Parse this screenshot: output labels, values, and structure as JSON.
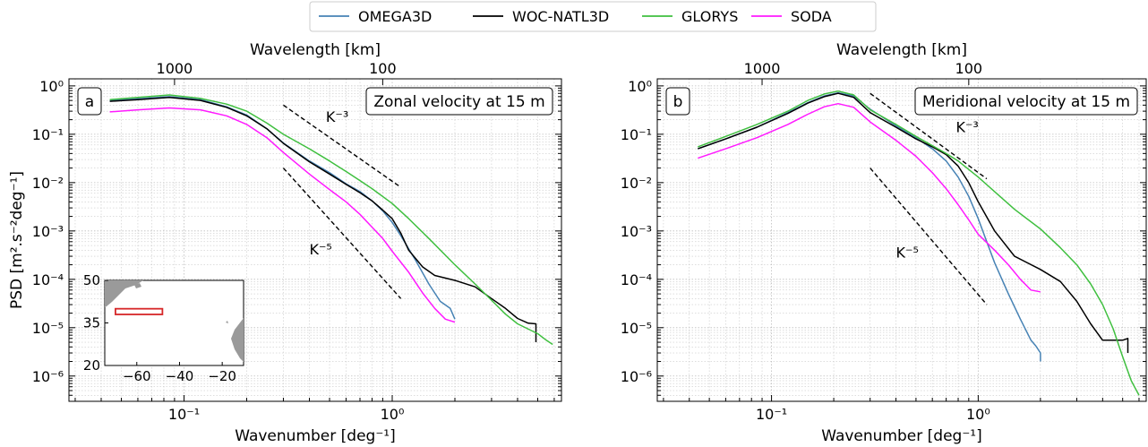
{
  "legend": {
    "items": [
      {
        "label": "OMEGA3D",
        "color": "#4682b4"
      },
      {
        "label": "WOC-NATL3D",
        "color": "#000000"
      },
      {
        "label": "GLORYS",
        "color": "#3fbf3f"
      },
      {
        "label": "SODA",
        "color": "#ff1aff"
      }
    ]
  },
  "chart_data": [
    {
      "type": "line",
      "panel_label": "a",
      "title": "Zonal velocity at 15 m",
      "xlabel": "Wavenumber [deg⁻¹]",
      "ylabel": "PSD [m².s⁻²deg⁻¹]",
      "top_axis_label": "Wavelength [km]",
      "top_ticks": [
        {
          "label": "1000",
          "wavenumber": 0.09
        },
        {
          "label": "100",
          "wavenumber": 0.9
        }
      ],
      "x_scale": "log",
      "y_scale": "log",
      "xlim": [
        0.028,
        6.5
      ],
      "ylim": [
        3e-07,
        1.4
      ],
      "x_ticks": [
        {
          "value": 0.1,
          "label": "10⁻¹"
        },
        {
          "value": 1,
          "label": "10⁰"
        }
      ],
      "y_ticks": [
        {
          "value": 1e-06,
          "label": "10⁻⁶"
        },
        {
          "value": 1e-05,
          "label": "10⁻⁵"
        },
        {
          "value": 0.0001,
          "label": "10⁻⁴"
        },
        {
          "value": 0.001,
          "label": "10⁻³"
        },
        {
          "value": 0.01,
          "label": "10⁻²"
        },
        {
          "value": 0.1,
          "label": "10⁻¹"
        },
        {
          "value": 1,
          "label": "10⁰"
        }
      ],
      "grid": true,
      "series": [
        {
          "name": "OMEGA3D",
          "color": "#4682b4",
          "points": [
            [
              0.044,
              0.5
            ],
            [
              0.06,
              0.54
            ],
            [
              0.085,
              0.6
            ],
            [
              0.12,
              0.52
            ],
            [
              0.16,
              0.37
            ],
            [
              0.2,
              0.25
            ],
            [
              0.25,
              0.13
            ],
            [
              0.3,
              0.066
            ],
            [
              0.4,
              0.028
            ],
            [
              0.5,
              0.016
            ],
            [
              0.6,
              0.0095
            ],
            [
              0.7,
              0.0065
            ],
            [
              0.8,
              0.0042
            ],
            [
              0.9,
              0.0026
            ],
            [
              1.0,
              0.0015
            ],
            [
              1.1,
              0.0008
            ],
            [
              1.3,
              0.00024
            ],
            [
              1.5,
              8e-05
            ],
            [
              1.7,
              3.5e-05
            ],
            [
              1.9,
              2.5e-05
            ],
            [
              2.0,
              1.5e-05
            ]
          ]
        },
        {
          "name": "WOC-NATL3D",
          "color": "#000000",
          "points": [
            [
              0.044,
              0.48
            ],
            [
              0.06,
              0.52
            ],
            [
              0.085,
              0.58
            ],
            [
              0.12,
              0.5
            ],
            [
              0.16,
              0.36
            ],
            [
              0.2,
              0.24
            ],
            [
              0.25,
              0.13
            ],
            [
              0.3,
              0.065
            ],
            [
              0.4,
              0.027
            ],
            [
              0.5,
              0.015
            ],
            [
              0.6,
              0.0092
            ],
            [
              0.7,
              0.0062
            ],
            [
              0.8,
              0.0042
            ],
            [
              0.9,
              0.0027
            ],
            [
              1.0,
              0.0018
            ],
            [
              1.1,
              0.0009
            ],
            [
              1.2,
              0.0004
            ],
            [
              1.4,
              0.00018
            ],
            [
              1.6,
              0.00012
            ],
            [
              2.0,
              9.5e-05
            ],
            [
              2.5,
              7e-05
            ],
            [
              3.0,
              4e-05
            ],
            [
              3.5,
              2.5e-05
            ],
            [
              4.0,
              1.55e-05
            ],
            [
              4.5,
              1.24e-05
            ],
            [
              4.9,
              1.2e-05
            ],
            [
              4.9,
              5e-06
            ]
          ]
        },
        {
          "name": "GLORYS",
          "color": "#3fbf3f",
          "points": [
            [
              0.044,
              0.52
            ],
            [
              0.06,
              0.58
            ],
            [
              0.085,
              0.65
            ],
            [
              0.12,
              0.55
            ],
            [
              0.16,
              0.42
            ],
            [
              0.2,
              0.3
            ],
            [
              0.25,
              0.17
            ],
            [
              0.3,
              0.1
            ],
            [
              0.4,
              0.05
            ],
            [
              0.5,
              0.028
            ],
            [
              0.6,
              0.017
            ],
            [
              0.7,
              0.011
            ],
            [
              0.8,
              0.0075
            ],
            [
              1.0,
              0.0037
            ],
            [
              1.2,
              0.0018
            ],
            [
              1.5,
              0.0007
            ],
            [
              2.0,
              0.0002
            ],
            [
              2.5,
              8e-05
            ],
            [
              3.0,
              3.7e-05
            ],
            [
              3.5,
              1.9e-05
            ],
            [
              4.0,
              1.2e-05
            ],
            [
              5.0,
              7.5e-06
            ],
            [
              5.5,
              5.5e-06
            ],
            [
              5.9,
              4.5e-06
            ]
          ]
        },
        {
          "name": "SODA",
          "color": "#ff1aff",
          "points": [
            [
              0.044,
              0.29
            ],
            [
              0.06,
              0.32
            ],
            [
              0.085,
              0.35
            ],
            [
              0.12,
              0.32
            ],
            [
              0.16,
              0.24
            ],
            [
              0.2,
              0.16
            ],
            [
              0.25,
              0.085
            ],
            [
              0.3,
              0.042
            ],
            [
              0.4,
              0.015
            ],
            [
              0.5,
              0.0072
            ],
            [
              0.6,
              0.004
            ],
            [
              0.7,
              0.0022
            ],
            [
              0.8,
              0.0012
            ],
            [
              0.9,
              0.0007
            ],
            [
              1.0,
              0.00038
            ],
            [
              1.2,
              0.00014
            ],
            [
              1.4,
              5.2e-05
            ],
            [
              1.6,
              2.5e-05
            ],
            [
              1.8,
              1.5e-05
            ],
            [
              2.0,
              1.3e-05
            ]
          ]
        }
      ],
      "reference_lines": [
        {
          "label": "K⁻³",
          "x": [
            0.3,
            1.1
          ],
          "y": [
            0.4,
            0.008
          ],
          "label_at": [
            0.48,
            0.18
          ]
        },
        {
          "label": "K⁻⁵",
          "x": [
            0.3,
            1.1
          ],
          "y": [
            0.02,
            4e-05
          ],
          "label_at": [
            0.4,
            0.00033
          ]
        }
      ],
      "inset": {
        "lon_ticks": [
          {
            "value": -60,
            "label": "−60"
          },
          {
            "value": -40,
            "label": "−40"
          },
          {
            "value": -20,
            "label": "−20"
          }
        ],
        "lat_ticks": [
          {
            "value": 50,
            "label": "50"
          },
          {
            "value": 35,
            "label": "35"
          },
          {
            "value": 20,
            "label": "20"
          }
        ],
        "lon_range": [
          -75,
          -10
        ],
        "lat_range": [
          20,
          50
        ],
        "box": {
          "lon": [
            -70,
            -48
          ],
          "lat": [
            38,
            40
          ],
          "color": "#d62728"
        }
      }
    },
    {
      "type": "line",
      "panel_label": "b",
      "title": "Meridional velocity at 15 m",
      "xlabel": "Wavenumber [deg⁻¹]",
      "top_axis_label": "Wavelength [km]",
      "top_ticks": [
        {
          "label": "1000",
          "wavenumber": 0.09
        },
        {
          "label": "100",
          "wavenumber": 0.9
        }
      ],
      "x_scale": "log",
      "y_scale": "log",
      "xlim": [
        0.028,
        6.5
      ],
      "ylim": [
        3e-07,
        1.4
      ],
      "x_ticks": [
        {
          "value": 0.1,
          "label": "10⁻¹"
        },
        {
          "value": 1,
          "label": "10⁰"
        }
      ],
      "y_ticks": [
        {
          "value": 1e-06,
          "label": "10⁻⁶"
        },
        {
          "value": 1e-05,
          "label": "10⁻⁵"
        },
        {
          "value": 0.0001,
          "label": "10⁻⁴"
        },
        {
          "value": 0.001,
          "label": "10⁻³"
        },
        {
          "value": 0.01,
          "label": "10⁻²"
        },
        {
          "value": 0.1,
          "label": "10⁻¹"
        },
        {
          "value": 1,
          "label": "10⁰"
        }
      ],
      "grid": true,
      "series": [
        {
          "name": "OMEGA3D",
          "color": "#4682b4",
          "points": [
            [
              0.044,
              0.05
            ],
            [
              0.06,
              0.08
            ],
            [
              0.085,
              0.14
            ],
            [
              0.12,
              0.28
            ],
            [
              0.15,
              0.45
            ],
            [
              0.18,
              0.62
            ],
            [
              0.21,
              0.72
            ],
            [
              0.25,
              0.62
            ],
            [
              0.3,
              0.33
            ],
            [
              0.4,
              0.15
            ],
            [
              0.5,
              0.085
            ],
            [
              0.6,
              0.05
            ],
            [
              0.7,
              0.028
            ],
            [
              0.8,
              0.013
            ],
            [
              0.9,
              0.0052
            ],
            [
              1.0,
              0.0018
            ],
            [
              1.1,
              0.0006
            ],
            [
              1.2,
              0.00022
            ],
            [
              1.4,
              5e-05
            ],
            [
              1.6,
              1.5e-05
            ],
            [
              1.8,
              5.5e-06
            ],
            [
              1.9,
              4.2e-06
            ],
            [
              2.0,
              3e-06
            ],
            [
              2.0,
              2e-06
            ]
          ]
        },
        {
          "name": "WOC-NATL3D",
          "color": "#000000",
          "points": [
            [
              0.044,
              0.05
            ],
            [
              0.06,
              0.08
            ],
            [
              0.085,
              0.14
            ],
            [
              0.12,
              0.27
            ],
            [
              0.15,
              0.44
            ],
            [
              0.18,
              0.6
            ],
            [
              0.21,
              0.7
            ],
            [
              0.25,
              0.58
            ],
            [
              0.3,
              0.28
            ],
            [
              0.4,
              0.14
            ],
            [
              0.5,
              0.08
            ],
            [
              0.6,
              0.055
            ],
            [
              0.7,
              0.038
            ],
            [
              0.8,
              0.022
            ],
            [
              0.9,
              0.01
            ],
            [
              1.0,
              0.004
            ],
            [
              1.2,
              0.001
            ],
            [
              1.5,
              0.0003
            ],
            [
              2.0,
              0.00016
            ],
            [
              2.5,
              9e-05
            ],
            [
              3.0,
              3.5e-05
            ],
            [
              3.5,
              1.2e-05
            ],
            [
              4.0,
              5.5e-06
            ],
            [
              4.5,
              5.5e-06
            ],
            [
              5.0,
              5.5e-06
            ],
            [
              5.3,
              6e-06
            ],
            [
              5.3,
              3e-06
            ]
          ]
        },
        {
          "name": "GLORYS",
          "color": "#3fbf3f",
          "points": [
            [
              0.044,
              0.055
            ],
            [
              0.06,
              0.09
            ],
            [
              0.085,
              0.16
            ],
            [
              0.12,
              0.3
            ],
            [
              0.15,
              0.5
            ],
            [
              0.18,
              0.68
            ],
            [
              0.21,
              0.78
            ],
            [
              0.25,
              0.65
            ],
            [
              0.3,
              0.32
            ],
            [
              0.4,
              0.16
            ],
            [
              0.5,
              0.09
            ],
            [
              0.6,
              0.058
            ],
            [
              0.7,
              0.04
            ],
            [
              0.8,
              0.028
            ],
            [
              1.0,
              0.013
            ],
            [
              1.2,
              0.0065
            ],
            [
              1.5,
              0.0028
            ],
            [
              2.0,
              0.0011
            ],
            [
              2.5,
              0.00045
            ],
            [
              3.0,
              0.0002
            ],
            [
              3.5,
              8e-05
            ],
            [
              4.0,
              3e-05
            ],
            [
              4.5,
              9.5e-06
            ],
            [
              5.0,
              2.5e-06
            ],
            [
              5.5,
              8e-07
            ],
            [
              6.0,
              4e-07
            ]
          ]
        },
        {
          "name": "SODA",
          "color": "#ff1aff",
          "points": [
            [
              0.044,
              0.032
            ],
            [
              0.06,
              0.05
            ],
            [
              0.085,
              0.085
            ],
            [
              0.12,
              0.16
            ],
            [
              0.15,
              0.26
            ],
            [
              0.18,
              0.37
            ],
            [
              0.21,
              0.43
            ],
            [
              0.25,
              0.36
            ],
            [
              0.3,
              0.18
            ],
            [
              0.4,
              0.075
            ],
            [
              0.5,
              0.035
            ],
            [
              0.6,
              0.016
            ],
            [
              0.7,
              0.0075
            ],
            [
              0.8,
              0.0035
            ],
            [
              0.9,
              0.0017
            ],
            [
              1.0,
              0.00085
            ],
            [
              1.2,
              0.0004
            ],
            [
              1.4,
              0.0002
            ],
            [
              1.6,
              0.0001
            ],
            [
              1.8,
              6e-05
            ],
            [
              2.0,
              5.5e-05
            ]
          ]
        }
      ],
      "reference_lines": [
        {
          "label": "K⁻³",
          "x": [
            0.3,
            1.1
          ],
          "y": [
            0.7,
            0.012
          ],
          "label_at": [
            0.78,
            0.11
          ]
        },
        {
          "label": "K⁻⁵",
          "x": [
            0.3,
            1.1
          ],
          "y": [
            0.02,
            3e-05
          ],
          "label_at": [
            0.4,
            0.00028
          ]
        }
      ]
    }
  ]
}
